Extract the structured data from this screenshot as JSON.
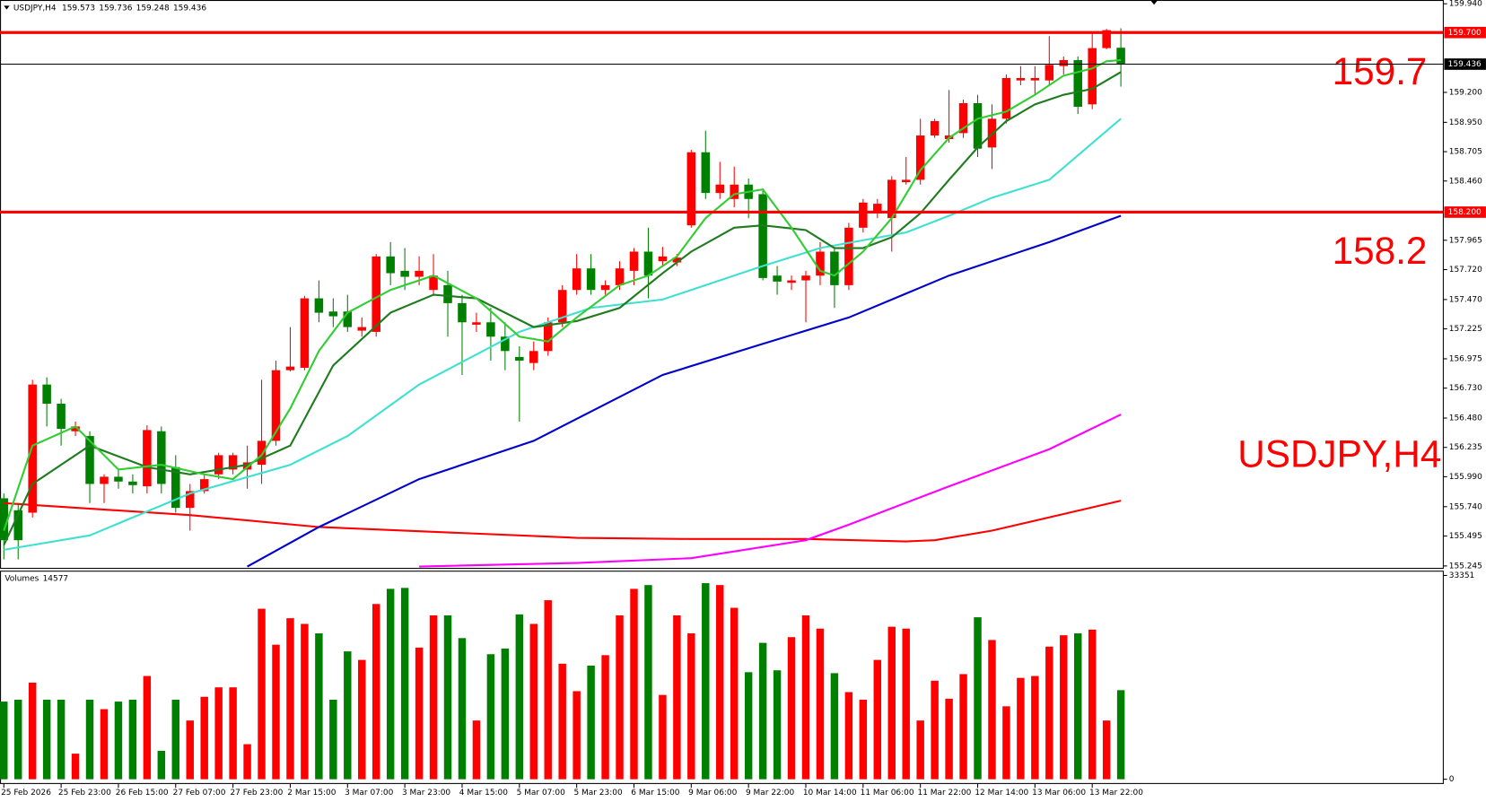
{
  "chart_data": [
    {
      "type": "candlestick",
      "title": "USDJPY,H4",
      "up_color": "#ff0000",
      "down_color": "#008000",
      "categories": [
        "25 Feb 2026",
        null,
        null,
        null,
        "25 Feb 23:00",
        null,
        null,
        null,
        "26 Feb 15:00",
        null,
        null,
        null,
        "27 Feb 07:00",
        null,
        null,
        null,
        "27 Feb 23:00",
        null,
        null,
        null,
        "2 Mar 15:00",
        null,
        null,
        null,
        "3 Mar 07:00",
        null,
        null,
        null,
        "3 Mar 23:00",
        null,
        null,
        null,
        "4 Mar 15:00",
        null,
        null,
        null,
        "5 Mar 07:00",
        null,
        null,
        null,
        "5 Mar 23:00",
        null,
        null,
        null,
        "6 Mar 15:00",
        null,
        null,
        null,
        "9 Mar 06:00",
        null,
        null,
        null,
        "9 Mar 22:00",
        null,
        null,
        null,
        "10 Mar 14:00",
        null,
        null,
        null,
        "11 Mar 06:00",
        null,
        null,
        null,
        "11 Mar 22:00",
        null,
        null,
        null,
        "12 Mar 14:00",
        null,
        null,
        null,
        "13 Mar 06:00",
        null,
        null,
        null,
        "13 Mar 22:00",
        null,
        null
      ],
      "ohlc": [
        [
          155.81,
          155.85,
          155.3,
          155.46
        ],
        [
          155.71,
          155.77,
          155.3,
          155.46
        ],
        [
          155.69,
          156.8,
          155.65,
          156.76
        ],
        [
          156.76,
          156.82,
          156.41,
          156.6
        ],
        [
          156.6,
          156.64,
          156.25,
          156.39
        ],
        [
          156.37,
          156.45,
          156.33,
          156.41
        ],
        [
          156.33,
          156.37,
          155.77,
          155.93
        ],
        [
          155.93,
          156.01,
          155.77,
          155.99
        ],
        [
          155.99,
          156.05,
          155.89,
          155.95
        ],
        [
          155.95,
          156.01,
          155.85,
          155.92
        ],
        [
          155.91,
          156.42,
          155.85,
          156.38
        ],
        [
          156.37,
          156.41,
          155.85,
          155.93
        ],
        [
          156.07,
          156.17,
          155.69,
          155.73
        ],
        [
          155.73,
          155.93,
          155.54,
          155.87
        ],
        [
          155.87,
          156.01,
          155.85,
          155.97
        ],
        [
          156.01,
          156.19,
          155.97,
          156.17
        ],
        [
          156.05,
          156.19,
          156.01,
          156.17
        ],
        [
          156.05,
          156.25,
          155.89,
          156.11
        ],
        [
          156.09,
          156.8,
          155.93,
          156.29
        ],
        [
          156.29,
          156.96,
          156.25,
          156.88
        ],
        [
          156.88,
          157.24,
          156.87,
          156.91
        ],
        [
          156.9,
          157.5,
          156.88,
          157.48
        ],
        [
          157.48,
          157.63,
          157.28,
          157.36
        ],
        [
          157.37,
          157.48,
          157.24,
          157.33
        ],
        [
          157.37,
          157.51,
          157.2,
          157.24
        ],
        [
          157.21,
          157.32,
          157.16,
          157.24
        ],
        [
          157.2,
          157.85,
          157.16,
          157.83
        ],
        [
          157.83,
          157.95,
          157.59,
          157.69
        ],
        [
          157.71,
          157.9,
          157.55,
          157.66
        ],
        [
          157.66,
          157.83,
          157.59,
          157.71
        ],
        [
          157.55,
          157.85,
          157.51,
          157.67
        ],
        [
          157.59,
          157.71,
          157.16,
          157.44
        ],
        [
          157.44,
          157.51,
          156.84,
          157.28
        ],
        [
          157.26,
          157.36,
          157.2,
          157.28
        ],
        [
          157.28,
          157.4,
          156.96,
          157.16
        ],
        [
          157.16,
          157.28,
          156.88,
          157.04
        ],
        [
          156.99,
          157.08,
          156.45,
          156.96
        ],
        [
          156.94,
          157.12,
          156.88,
          157.04
        ],
        [
          157.04,
          157.32,
          157.0,
          157.28
        ],
        [
          157.28,
          157.59,
          157.24,
          157.55
        ],
        [
          157.55,
          157.85,
          157.51,
          157.73
        ],
        [
          157.73,
          157.85,
          157.51,
          157.55
        ],
        [
          157.55,
          157.63,
          157.51,
          157.59
        ],
        [
          157.59,
          157.79,
          157.55,
          157.73
        ],
        [
          157.71,
          157.9,
          157.59,
          157.87
        ],
        [
          157.87,
          158.07,
          157.48,
          157.67
        ],
        [
          157.79,
          157.91,
          157.75,
          157.83
        ],
        [
          157.78,
          157.85,
          157.75,
          157.82
        ],
        [
          158.09,
          158.72,
          158.07,
          158.7
        ],
        [
          158.7,
          158.88,
          158.31,
          158.36
        ],
        [
          158.36,
          158.62,
          158.31,
          158.43
        ],
        [
          158.31,
          158.58,
          158.24,
          158.43
        ],
        [
          158.43,
          158.48,
          158.15,
          158.31
        ],
        [
          158.35,
          158.39,
          157.63,
          157.65
        ],
        [
          157.67,
          157.75,
          157.51,
          157.62
        ],
        [
          157.61,
          157.67,
          157.55,
          157.63
        ],
        [
          157.63,
          157.71,
          157.28,
          157.67
        ],
        [
          157.67,
          157.95,
          157.59,
          157.87
        ],
        [
          157.87,
          157.91,
          157.4,
          157.59
        ],
        [
          157.59,
          158.11,
          157.55,
          158.07
        ],
        [
          158.07,
          158.31,
          158.03,
          158.28
        ],
        [
          158.19,
          158.31,
          158.15,
          158.27
        ],
        [
          158.15,
          158.5,
          157.87,
          158.47
        ],
        [
          158.45,
          158.66,
          158.43,
          158.47
        ],
        [
          158.47,
          158.98,
          158.43,
          158.84
        ],
        [
          158.84,
          158.98,
          158.82,
          158.96
        ],
        [
          158.81,
          159.22,
          158.78,
          158.84
        ],
        [
          158.86,
          159.14,
          158.82,
          159.11
        ],
        [
          159.11,
          159.18,
          158.66,
          158.73
        ],
        [
          158.74,
          159.1,
          158.56,
          158.98
        ],
        [
          158.98,
          159.35,
          158.94,
          159.32
        ],
        [
          159.3,
          159.42,
          159.26,
          159.32
        ],
        [
          159.3,
          159.42,
          159.18,
          159.32
        ],
        [
          159.3,
          159.67,
          159.26,
          159.43
        ],
        [
          159.42,
          159.5,
          159.35,
          159.47
        ],
        [
          159.47,
          159.5,
          159.02,
          159.08
        ],
        [
          159.1,
          159.69,
          159.06,
          159.57
        ],
        [
          159.57,
          159.73,
          159.56,
          159.72
        ],
        [
          159.573,
          159.736,
          159.248,
          159.436
        ]
      ],
      "overlays": [
        {
          "color": "#ff0000",
          "x": [
            0,
            13,
            22,
            40,
            48,
            56,
            63,
            65,
            69,
            78
          ],
          "values": [
            155.77,
            155.67,
            155.57,
            155.48,
            155.47,
            155.47,
            155.45,
            155.46,
            155.54,
            155.79
          ]
        },
        {
          "color": "#ff00ff",
          "x": [
            29,
            40,
            48,
            56,
            59,
            66,
            73,
            78
          ],
          "values": [
            155.24,
            155.27,
            155.31,
            155.46,
            155.59,
            155.91,
            156.22,
            156.51
          ]
        },
        {
          "color": "#0000cd",
          "x": [
            17,
            22,
            29,
            37,
            46,
            53,
            59,
            66,
            73,
            78
          ],
          "values": [
            155.24,
            155.57,
            155.97,
            156.29,
            156.84,
            157.1,
            157.32,
            157.67,
            157.95,
            158.17
          ]
        },
        {
          "color": "#40e0d0",
          "x": [
            0,
            6,
            13,
            20,
            24,
            29,
            36,
            41,
            46,
            53,
            57,
            63,
            66,
            69,
            73,
            78
          ],
          "values": [
            155.38,
            155.5,
            155.85,
            156.09,
            156.33,
            156.76,
            157.2,
            157.4,
            157.47,
            157.75,
            157.9,
            158.03,
            158.17,
            158.32,
            158.47,
            158.98
          ]
        },
        {
          "color": "#1e7b1e",
          "x": [
            0,
            2,
            6,
            10,
            13,
            17,
            20,
            23,
            27,
            30,
            33,
            37,
            40,
            43,
            46,
            48,
            51,
            53,
            56,
            58,
            60,
            62,
            64,
            66,
            68,
            70,
            72,
            74,
            76,
            78
          ],
          "values": [
            155.42,
            155.93,
            156.25,
            156.07,
            156.01,
            156.09,
            156.25,
            156.92,
            157.36,
            157.51,
            157.48,
            157.24,
            157.29,
            157.4,
            157.69,
            157.87,
            158.07,
            158.09,
            158.05,
            157.9,
            157.9,
            157.99,
            158.19,
            158.47,
            158.74,
            158.96,
            159.1,
            159.18,
            159.23,
            159.37
          ]
        },
        {
          "color": "#32cd32",
          "x": [
            0,
            2,
            5,
            8,
            11,
            14,
            16,
            18,
            20,
            22,
            24,
            27,
            30,
            33,
            36,
            38,
            40,
            43,
            45,
            47,
            49,
            51,
            53,
            55,
            57,
            58,
            60,
            62,
            64,
            66,
            68,
            70,
            72,
            74,
            76,
            77,
            78
          ],
          "values": [
            155.54,
            156.25,
            156.41,
            156.05,
            156.09,
            156.01,
            155.97,
            156.17,
            156.56,
            157.04,
            157.36,
            157.55,
            157.67,
            157.48,
            157.16,
            157.12,
            157.32,
            157.59,
            157.67,
            157.83,
            158.15,
            158.35,
            158.39,
            158.07,
            157.71,
            157.67,
            157.87,
            158.15,
            158.55,
            158.82,
            158.98,
            159.04,
            159.18,
            159.34,
            159.4,
            159.46,
            159.47
          ]
        }
      ],
      "hlines": [
        {
          "value": 159.7,
          "label": "159.700",
          "annotation": "159.7",
          "color": "#ff0000"
        },
        {
          "value": 158.2,
          "label": "158.200",
          "annotation": "158.2",
          "color": "#ff0000"
        }
      ],
      "ylim": [
        155.245,
        159.94
      ],
      "yticks": [
        {
          "value": 159.94,
          "label": "159.940"
        },
        {
          "value": 159.2,
          "label": "159.200"
        },
        {
          "value": 158.95,
          "label": "158.950"
        },
        {
          "value": 158.705,
          "label": "158.705"
        },
        {
          "value": 158.46,
          "label": "158.460"
        },
        {
          "value": 157.965,
          "label": "157.965"
        },
        {
          "value": 157.72,
          "label": "157.720"
        },
        {
          "value": 157.47,
          "label": "157.470"
        },
        {
          "value": 157.225,
          "label": "157.225"
        },
        {
          "value": 156.975,
          "label": "156.975"
        },
        {
          "value": 156.73,
          "label": "156.730"
        },
        {
          "value": 156.48,
          "label": "156.480"
        },
        {
          "value": 156.235,
          "label": "156.235"
        },
        {
          "value": 155.99,
          "label": "155.990"
        },
        {
          "value": 155.74,
          "label": "155.740"
        },
        {
          "value": 155.495,
          "label": "155.495"
        },
        {
          "value": 155.245,
          "label": "155.245"
        }
      ]
    },
    {
      "type": "bar",
      "title": "Volumes",
      "values": [
        12710,
        13020,
        15810,
        13020,
        13020,
        4185,
        13020,
        11470,
        12710,
        13020,
        16895,
        4650,
        13020,
        9610,
        13485,
        15035,
        15035,
        5735,
        27900,
        22010,
        26350,
        25420,
        23870,
        13020,
        20925,
        19530,
        28675,
        31155,
        31310,
        21545,
        26815,
        26815,
        23095,
        9610,
        20460,
        21390,
        26970,
        25420,
        29295,
        18910,
        14415,
        18600,
        20305,
        26815,
        31155,
        31775,
        13795,
        26815,
        23870,
        32085,
        31775,
        28055,
        17515,
        22320,
        17825,
        23250,
        26815,
        24645,
        17360,
        14260,
        13020,
        19530,
        24955,
        24645,
        9610,
        16120,
        13175,
        17205,
        26505,
        22785,
        11935,
        16585,
        16895,
        21700,
        23560,
        23870,
        24490,
        9610,
        14577
      ],
      "ylim": [
        0,
        33351
      ],
      "yticks": [
        33351,
        0
      ]
    }
  ]
}
